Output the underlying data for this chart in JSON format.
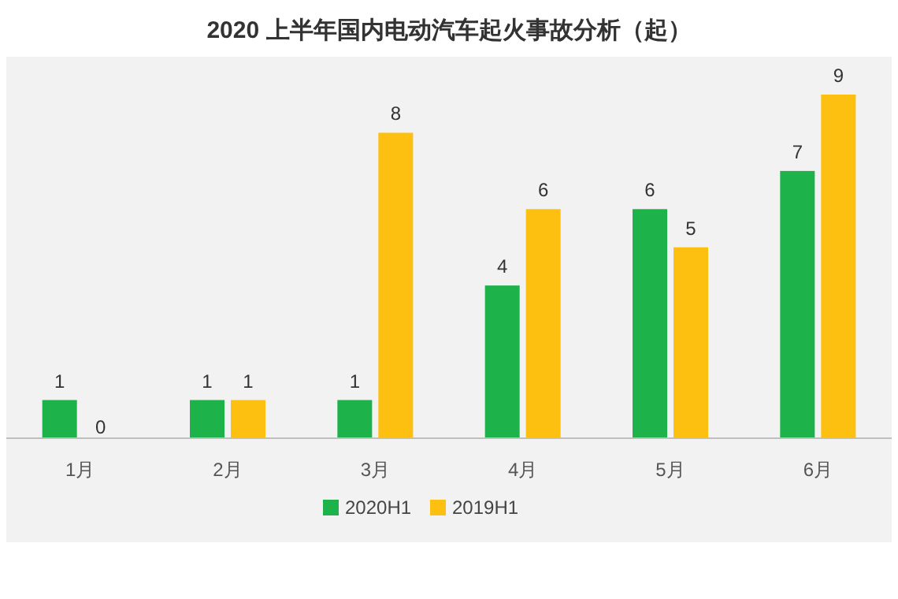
{
  "chart_data": {
    "type": "bar",
    "title": "2020 上半年国内电动汽车起火事故分析（起）",
    "categories": [
      "1月",
      "2月",
      "3月",
      "4月",
      "5月",
      "6月"
    ],
    "series": [
      {
        "name": "2020H1",
        "color": "#1db24a",
        "values": [
          1,
          1,
          1,
          4,
          6,
          7
        ]
      },
      {
        "name": "2019H1",
        "color": "#fdc010",
        "values": [
          0,
          1,
          8,
          6,
          5,
          9
        ]
      }
    ],
    "data_labels": true,
    "legend": "bottom"
  }
}
